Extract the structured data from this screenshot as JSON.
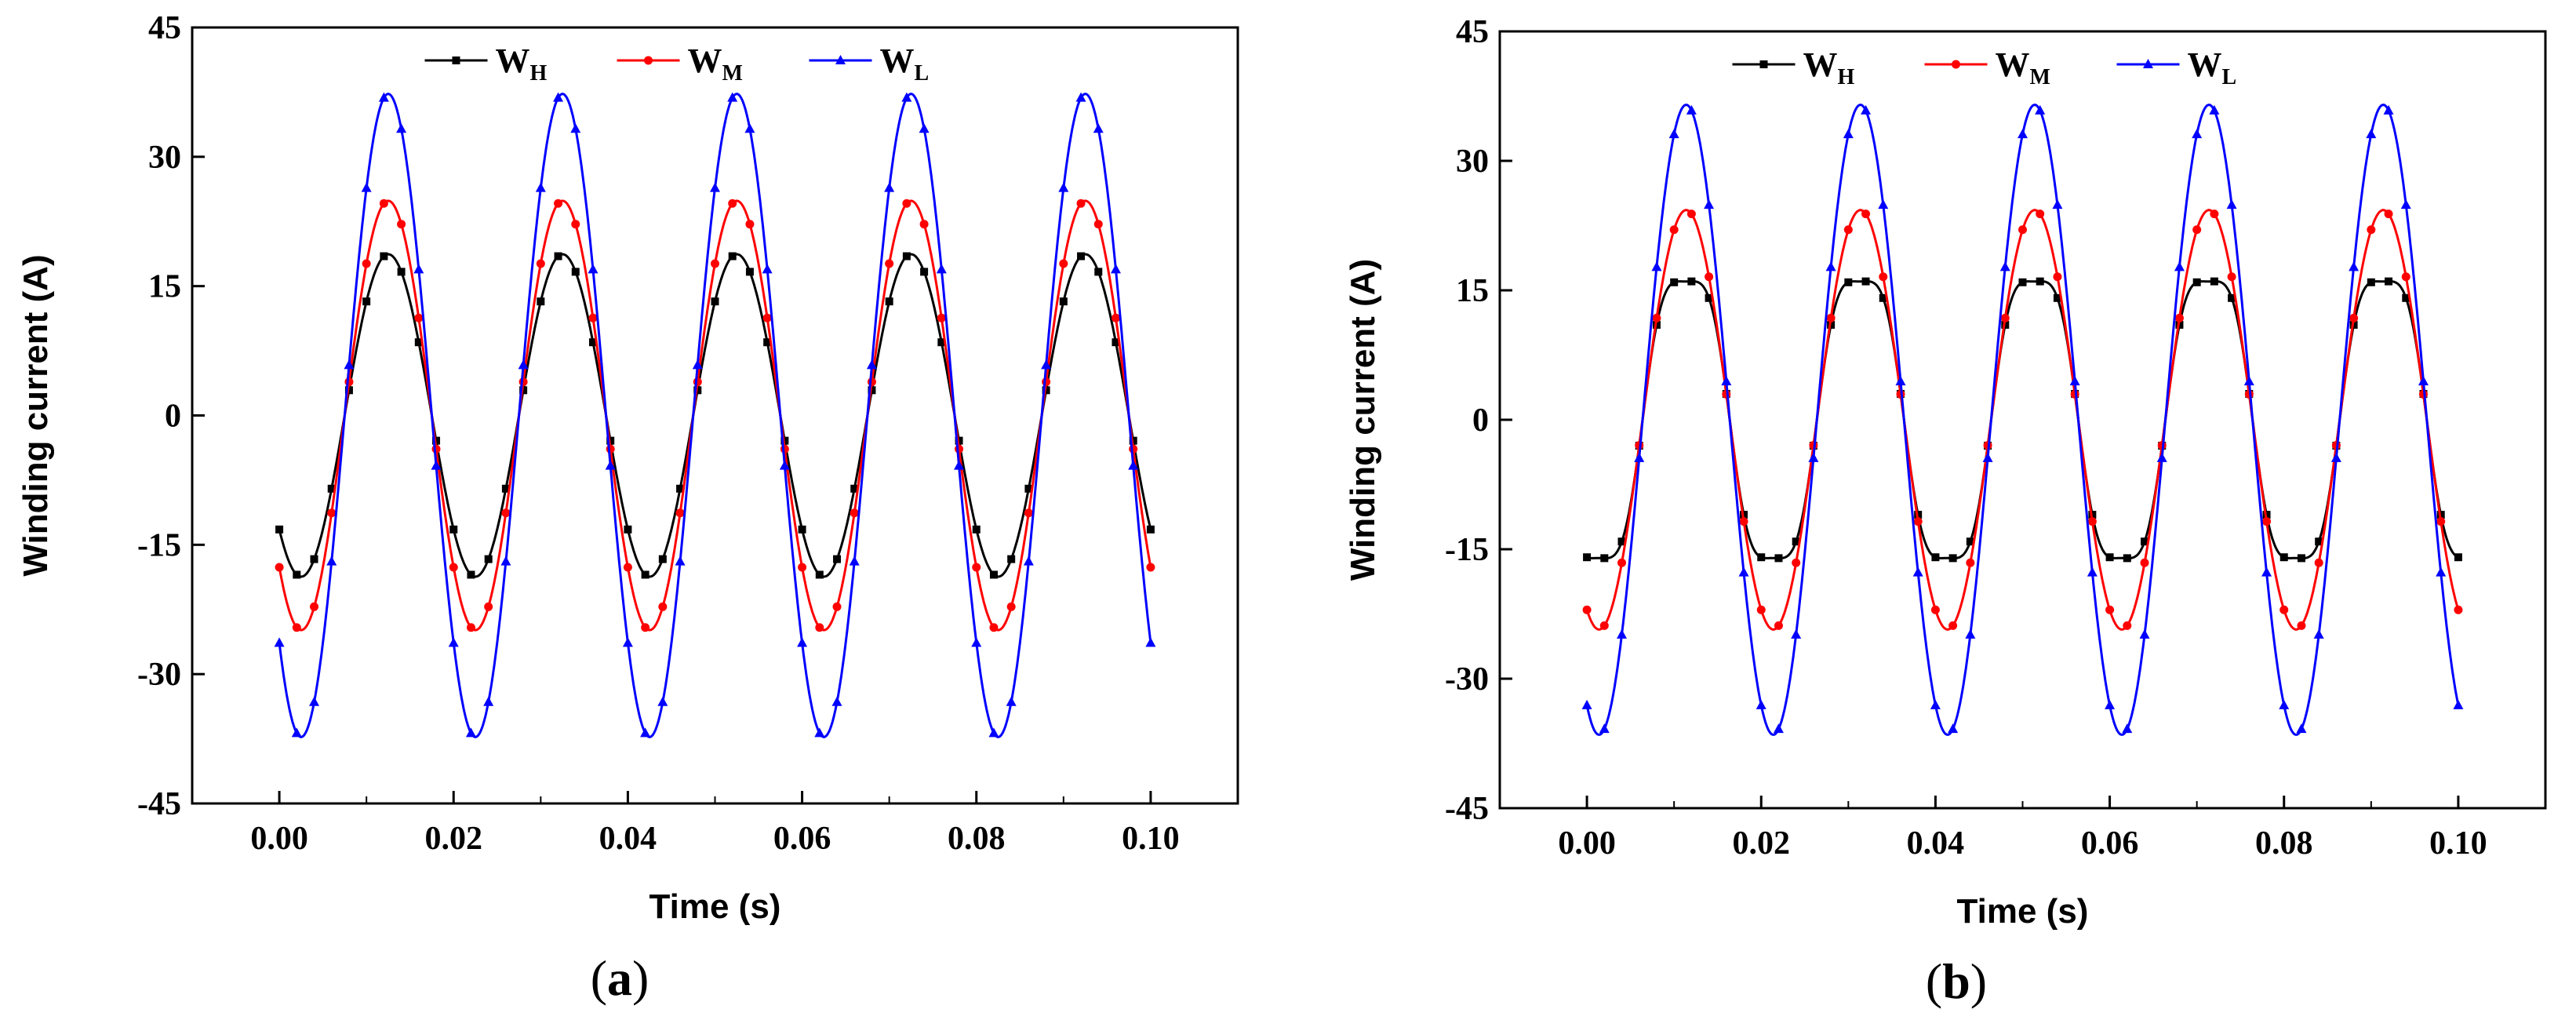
{
  "figure": {
    "panels": [
      "(a)",
      "(b)"
    ]
  },
  "chart_data": [
    {
      "type": "line",
      "panel": "(a)",
      "panel_letter": "a",
      "xlabel": "Time (s)",
      "ylabel": "Winding current (A)",
      "xlim": [
        -0.01,
        0.11
      ],
      "ylim": [
        -45,
        45
      ],
      "xticks": [
        "0.00",
        "0.02",
        "0.04",
        "0.06",
        "0.08",
        "0.10"
      ],
      "yticks": [
        "-45",
        "-30",
        "-15",
        "0",
        "15",
        "30",
        "45"
      ],
      "legend_position": "top-center",
      "x": [
        0.0,
        0.1
      ],
      "frequency_hz": 50,
      "series": [
        {
          "name": "W",
          "subscript": "H",
          "color": "#000000",
          "marker": "square",
          "amplitude": 18.7,
          "phase_deg": -135
        },
        {
          "name": "W",
          "subscript": "M",
          "color": "#ff0000",
          "marker": "circle",
          "amplitude": 24.9,
          "phase_deg": -135
        },
        {
          "name": "W",
          "subscript": "L",
          "color": "#0000ff",
          "marker": "triangle",
          "amplitude": 37.3,
          "phase_deg": -135
        }
      ]
    },
    {
      "type": "line",
      "panel": "(b)",
      "panel_letter": "b",
      "xlabel": "Time (s)",
      "ylabel": "Winding current (A)",
      "xlim": [
        -0.01,
        0.11
      ],
      "ylim": [
        -45,
        45
      ],
      "xticks": [
        "0.00",
        "0.02",
        "0.04",
        "0.06",
        "0.08",
        "0.10"
      ],
      "yticks": [
        "-45",
        "-30",
        "-15",
        "0",
        "15",
        "30",
        "45"
      ],
      "legend_position": "top-center",
      "x": [
        0.0,
        0.1
      ],
      "frequency_hz": 50,
      "series": [
        {
          "name": "W",
          "subscript": "H",
          "color": "#000000",
          "marker": "square",
          "amplitude": 18.2,
          "phase_deg": -115,
          "harmonic": 0.12
        },
        {
          "name": "W",
          "subscript": "M",
          "color": "#ff0000",
          "marker": "circle",
          "amplitude": 24.3,
          "phase_deg": -115
        },
        {
          "name": "W",
          "subscript": "L",
          "color": "#0000ff",
          "marker": "triangle",
          "amplitude": 36.5,
          "phase_deg": -115
        }
      ]
    }
  ]
}
